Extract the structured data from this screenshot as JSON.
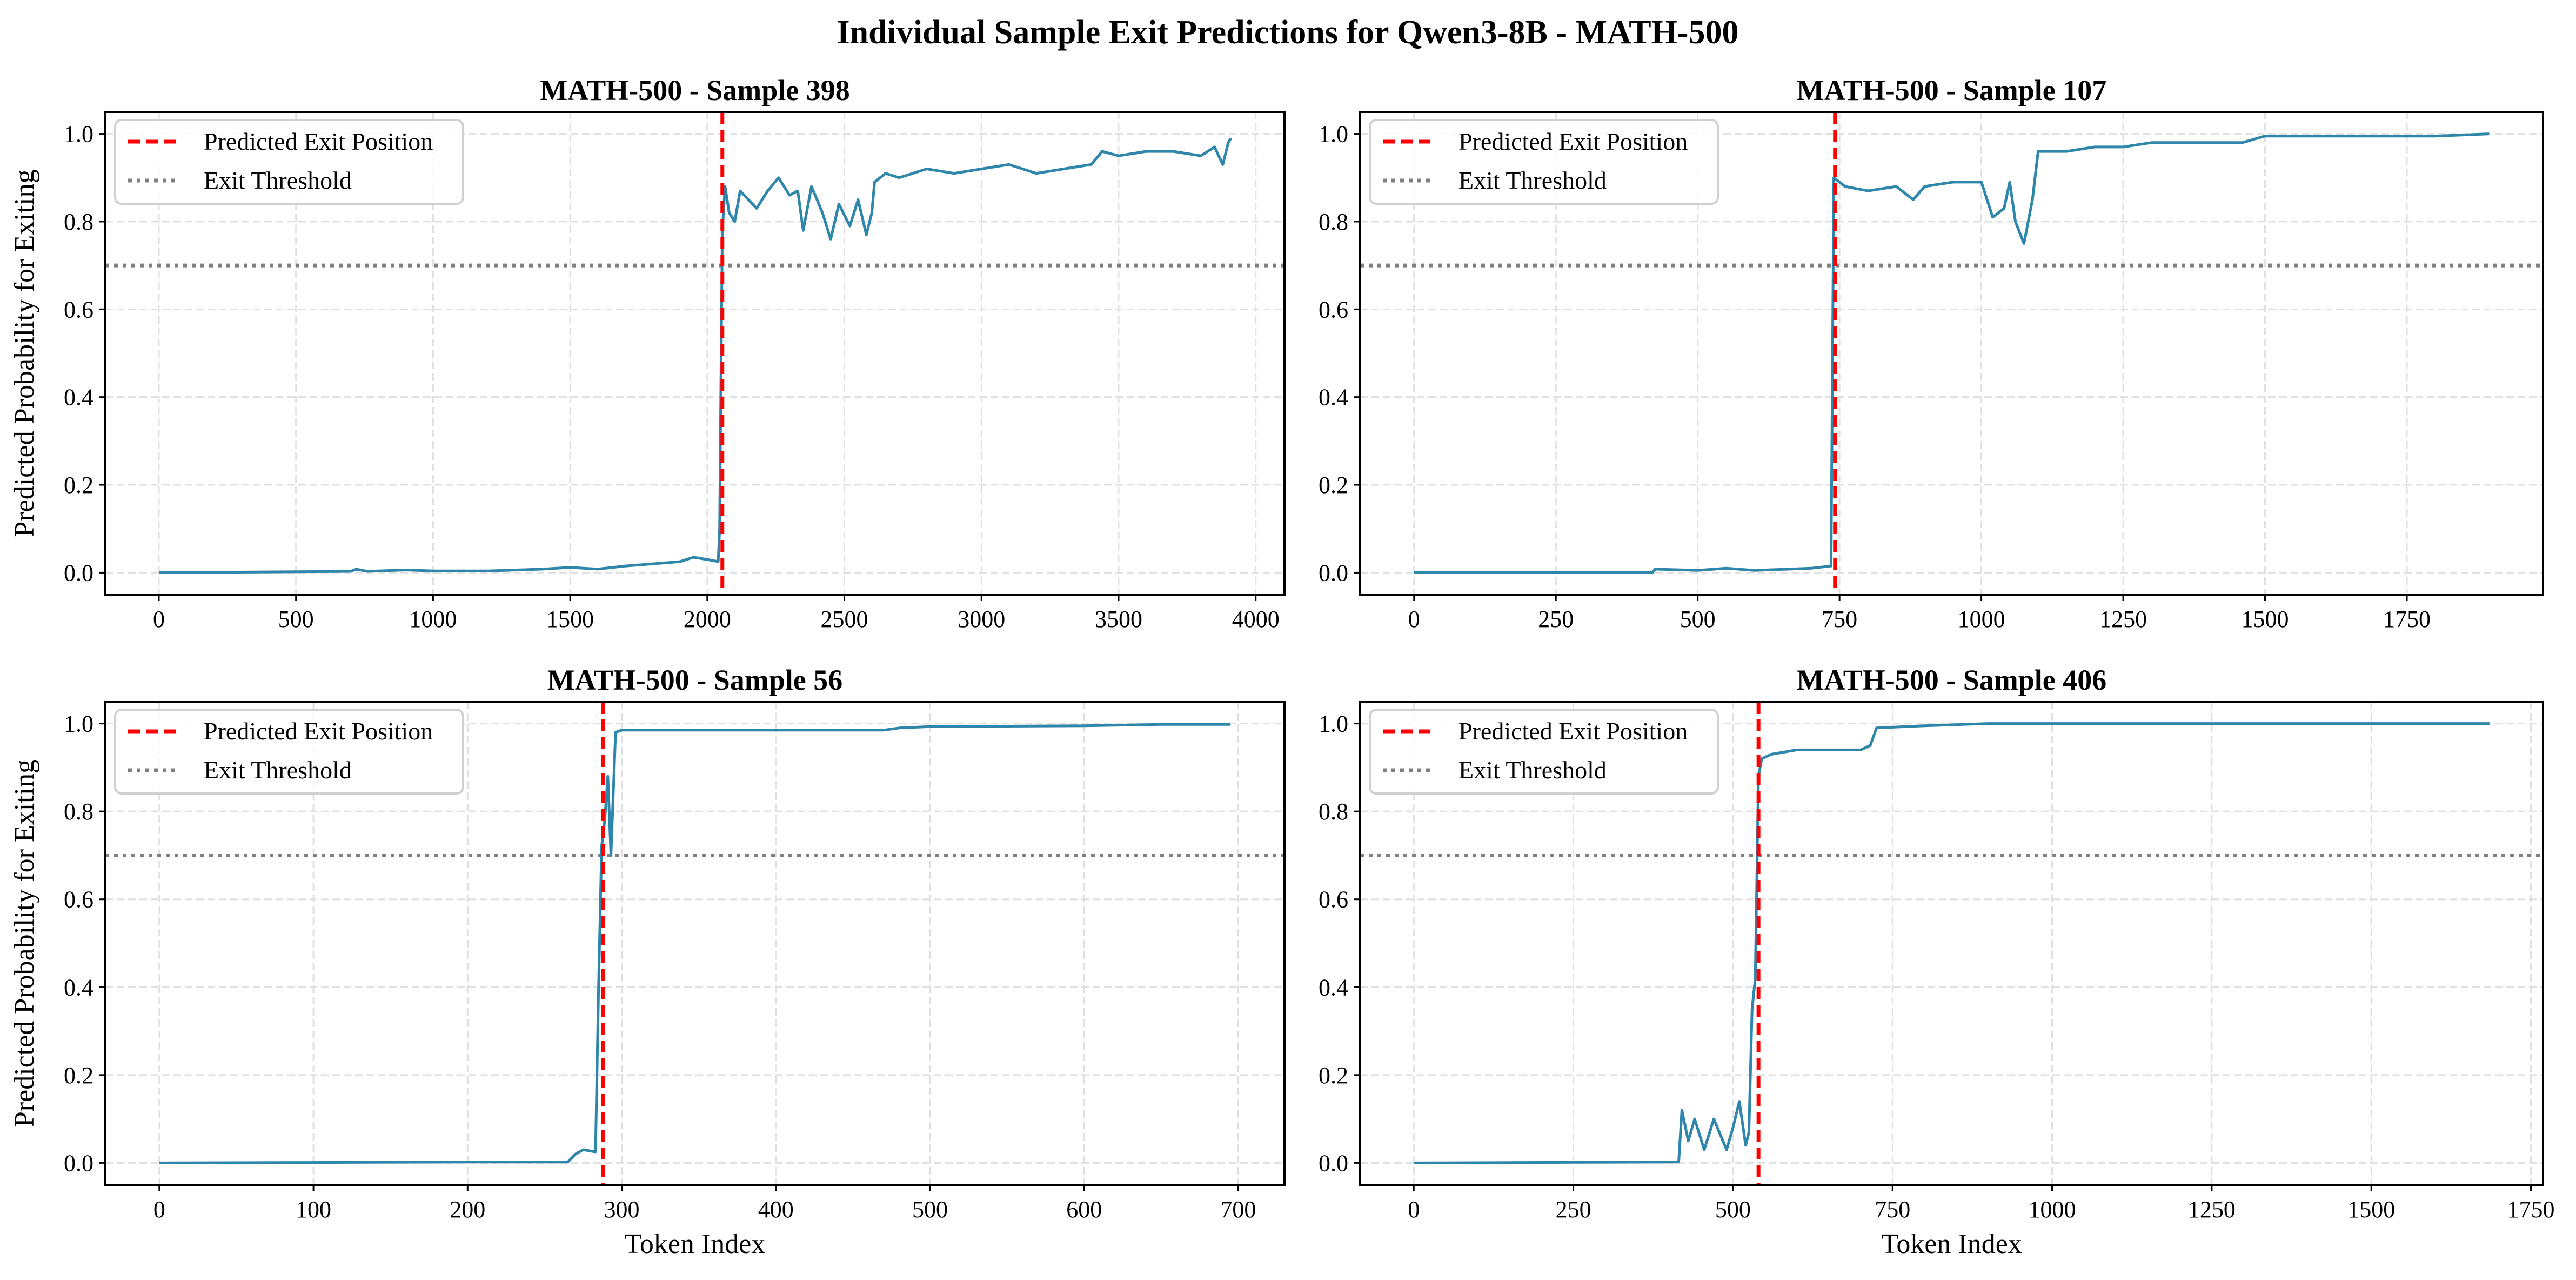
{
  "figure_title": "Individual Sample Exit Predictions for Qwen3-8B - MATH-500",
  "colors": {
    "series": "#2E86AB",
    "exit_line": "#FF0000",
    "threshold": "#808080",
    "grid": "#E0E0E0"
  },
  "legend": {
    "placement": "upper-left",
    "entries": [
      "Predicted Exit Position",
      "Exit Threshold"
    ]
  },
  "chart_data": [
    {
      "type": "line",
      "title": "MATH-500 - Sample 398",
      "xlabel": "",
      "ylabel": "Predicted Probability for Exiting",
      "xlim": [
        -195,
        4105
      ],
      "ylim": [
        -0.05,
        1.05
      ],
      "xticks": [
        "0",
        "500",
        "1000",
        "1500",
        "2000",
        "2500",
        "3000",
        "3500",
        "4000"
      ],
      "xtick_values": [
        0,
        500,
        1000,
        1500,
        2000,
        2500,
        3000,
        3500,
        4000
      ],
      "yticks": [
        "0.0",
        "0.2",
        "0.4",
        "0.6",
        "0.8",
        "1.0"
      ],
      "ytick_values": [
        0,
        0.2,
        0.4,
        0.6,
        0.8,
        1.0
      ],
      "grid": true,
      "exit_position": 2055,
      "threshold": 0.7,
      "points": [
        [
          0,
          0
        ],
        [
          500,
          0.002
        ],
        [
          700,
          0.003
        ],
        [
          720,
          0.008
        ],
        [
          760,
          0.003
        ],
        [
          900,
          0.006
        ],
        [
          1000,
          0.004
        ],
        [
          1200,
          0.004
        ],
        [
          1400,
          0.008
        ],
        [
          1500,
          0.012
        ],
        [
          1600,
          0.008
        ],
        [
          1700,
          0.015
        ],
        [
          1800,
          0.02
        ],
        [
          1900,
          0.025
        ],
        [
          1950,
          0.035
        ],
        [
          2000,
          0.03
        ],
        [
          2040,
          0.025
        ],
        [
          2045,
          0.1
        ],
        [
          2055,
          0.78
        ],
        [
          2065,
          0.88
        ],
        [
          2080,
          0.82
        ],
        [
          2100,
          0.8
        ],
        [
          2120,
          0.87
        ],
        [
          2150,
          0.85
        ],
        [
          2180,
          0.83
        ],
        [
          2220,
          0.87
        ],
        [
          2260,
          0.9
        ],
        [
          2300,
          0.86
        ],
        [
          2330,
          0.87
        ],
        [
          2350,
          0.78
        ],
        [
          2380,
          0.88
        ],
        [
          2420,
          0.82
        ],
        [
          2450,
          0.76
        ],
        [
          2480,
          0.84
        ],
        [
          2520,
          0.79
        ],
        [
          2550,
          0.85
        ],
        [
          2580,
          0.77
        ],
        [
          2600,
          0.82
        ],
        [
          2610,
          0.89
        ],
        [
          2650,
          0.91
        ],
        [
          2700,
          0.9
        ],
        [
          2800,
          0.92
        ],
        [
          2900,
          0.91
        ],
        [
          3000,
          0.92
        ],
        [
          3100,
          0.93
        ],
        [
          3200,
          0.91
        ],
        [
          3300,
          0.92
        ],
        [
          3400,
          0.93
        ],
        [
          3440,
          0.96
        ],
        [
          3500,
          0.95
        ],
        [
          3600,
          0.96
        ],
        [
          3700,
          0.96
        ],
        [
          3800,
          0.95
        ],
        [
          3850,
          0.97
        ],
        [
          3880,
          0.93
        ],
        [
          3900,
          0.98
        ],
        [
          3910,
          0.99
        ]
      ]
    },
    {
      "type": "line",
      "title": "MATH-500 - Sample 107",
      "xlabel": "",
      "ylabel": "",
      "xlim": [
        -95,
        1990
      ],
      "ylim": [
        -0.05,
        1.05
      ],
      "xticks": [
        "0",
        "250",
        "500",
        "750",
        "1000",
        "1250",
        "1500",
        "1750"
      ],
      "xtick_values": [
        0,
        250,
        500,
        750,
        1000,
        1250,
        1500,
        1750
      ],
      "yticks": [
        "0.0",
        "0.2",
        "0.4",
        "0.6",
        "0.8",
        "1.0"
      ],
      "ytick_values": [
        0,
        0.2,
        0.4,
        0.6,
        0.8,
        1.0
      ],
      "grid": true,
      "exit_position": 742,
      "threshold": 0.7,
      "points": [
        [
          0,
          0
        ],
        [
          420,
          0.0
        ],
        [
          425,
          0.008
        ],
        [
          500,
          0.005
        ],
        [
          550,
          0.01
        ],
        [
          600,
          0.005
        ],
        [
          700,
          0.01
        ],
        [
          735,
          0.015
        ],
        [
          740,
          0.9
        ],
        [
          760,
          0.88
        ],
        [
          800,
          0.87
        ],
        [
          850,
          0.88
        ],
        [
          880,
          0.85
        ],
        [
          900,
          0.88
        ],
        [
          950,
          0.89
        ],
        [
          1000,
          0.89
        ],
        [
          1010,
          0.85
        ],
        [
          1020,
          0.81
        ],
        [
          1040,
          0.83
        ],
        [
          1050,
          0.89
        ],
        [
          1060,
          0.8
        ],
        [
          1075,
          0.75
        ],
        [
          1090,
          0.85
        ],
        [
          1100,
          0.96
        ],
        [
          1150,
          0.96
        ],
        [
          1200,
          0.97
        ],
        [
          1250,
          0.97
        ],
        [
          1300,
          0.98
        ],
        [
          1350,
          0.98
        ],
        [
          1400,
          0.98
        ],
        [
          1460,
          0.98
        ],
        [
          1500,
          0.995
        ],
        [
          1600,
          0.995
        ],
        [
          1700,
          0.995
        ],
        [
          1800,
          0.995
        ],
        [
          1895,
          1.0
        ]
      ]
    },
    {
      "type": "line",
      "title": "MATH-500 - Sample 56",
      "xlabel": "Token Index",
      "ylabel": "Predicted Probability for Exiting",
      "xlim": [
        -35,
        730
      ],
      "ylim": [
        -0.05,
        1.05
      ],
      "xticks": [
        "0",
        "100",
        "200",
        "300",
        "400",
        "500",
        "600",
        "700"
      ],
      "xtick_values": [
        0,
        100,
        200,
        300,
        400,
        500,
        600,
        700
      ],
      "yticks": [
        "0.0",
        "0.2",
        "0.4",
        "0.6",
        "0.8",
        "1.0"
      ],
      "ytick_values": [
        0,
        0.2,
        0.4,
        0.6,
        0.8,
        1.0
      ],
      "grid": true,
      "exit_position": 288,
      "threshold": 0.7,
      "points": [
        [
          0,
          0
        ],
        [
          100,
          0.001
        ],
        [
          200,
          0.002
        ],
        [
          265,
          0.002
        ],
        [
          270,
          0.02
        ],
        [
          275,
          0.03
        ],
        [
          283,
          0.025
        ],
        [
          285,
          0.4
        ],
        [
          287,
          0.72
        ],
        [
          289,
          0.78
        ],
        [
          291,
          0.88
        ],
        [
          293,
          0.7
        ],
        [
          296,
          0.98
        ],
        [
          300,
          0.985
        ],
        [
          350,
          0.985
        ],
        [
          400,
          0.985
        ],
        [
          450,
          0.985
        ],
        [
          470,
          0.985
        ],
        [
          480,
          0.99
        ],
        [
          500,
          0.993
        ],
        [
          600,
          0.995
        ],
        [
          650,
          0.998
        ],
        [
          695,
          0.998
        ]
      ]
    },
    {
      "type": "line",
      "title": "MATH-500 - Sample 406",
      "xlabel": "Token Index",
      "ylabel": "",
      "xlim": [
        -84,
        1769
      ],
      "ylim": [
        -0.05,
        1.05
      ],
      "xticks": [
        "0",
        "250",
        "500",
        "750",
        "1000",
        "1250",
        "1500",
        "1750"
      ],
      "xtick_values": [
        0,
        250,
        500,
        750,
        1000,
        1250,
        1500,
        1750
      ],
      "yticks": [
        "0.0",
        "0.2",
        "0.4",
        "0.6",
        "0.8",
        "1.0"
      ],
      "ytick_values": [
        0,
        0.2,
        0.4,
        0.6,
        0.8,
        1.0
      ],
      "grid": true,
      "exit_position": 540,
      "threshold": 0.7,
      "points": [
        [
          0,
          0
        ],
        [
          400,
          0.002
        ],
        [
          415,
          0.002
        ],
        [
          420,
          0.12
        ],
        [
          430,
          0.05
        ],
        [
          440,
          0.1
        ],
        [
          455,
          0.03
        ],
        [
          470,
          0.1
        ],
        [
          490,
          0.03
        ],
        [
          500,
          0.08
        ],
        [
          510,
          0.14
        ],
        [
          520,
          0.04
        ],
        [
          525,
          0.07
        ],
        [
          530,
          0.35
        ],
        [
          535,
          0.42
        ],
        [
          540,
          0.88
        ],
        [
          545,
          0.92
        ],
        [
          560,
          0.93
        ],
        [
          600,
          0.94
        ],
        [
          650,
          0.94
        ],
        [
          700,
          0.94
        ],
        [
          715,
          0.95
        ],
        [
          725,
          0.99
        ],
        [
          800,
          0.995
        ],
        [
          900,
          1.0
        ],
        [
          1200,
          1.0
        ],
        [
          1685,
          1.0
        ]
      ]
    }
  ]
}
